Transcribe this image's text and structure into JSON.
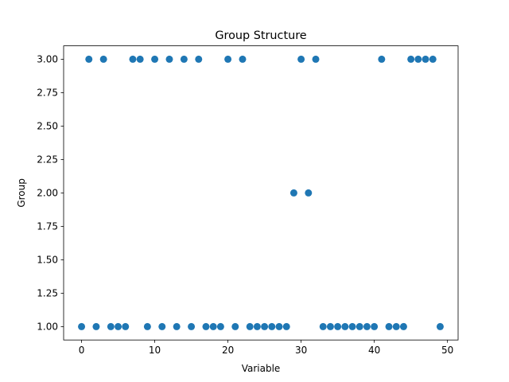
{
  "chart_data": {
    "type": "scatter",
    "title": "Group Structure",
    "xlabel": "Variable",
    "ylabel": "Group",
    "xlim": [
      -2.45,
      51.45
    ],
    "ylim": [
      0.9,
      3.1
    ],
    "xticks": [
      0,
      10,
      20,
      30,
      40,
      50
    ],
    "xtick_labels": [
      "0",
      "10",
      "20",
      "30",
      "40",
      "50"
    ],
    "yticks": [
      1.0,
      1.25,
      1.5,
      1.75,
      2.0,
      2.25,
      2.5,
      2.75,
      3.0
    ],
    "ytick_labels": [
      "1.00",
      "1.25",
      "1.50",
      "1.75",
      "2.00",
      "2.25",
      "2.50",
      "2.75",
      "3.00"
    ],
    "grid": false,
    "marker_color": "#1f77b4",
    "x": [
      0,
      1,
      2,
      3,
      4,
      5,
      6,
      7,
      8,
      9,
      10,
      11,
      12,
      13,
      14,
      15,
      16,
      17,
      18,
      19,
      20,
      21,
      22,
      23,
      24,
      25,
      26,
      27,
      28,
      29,
      30,
      31,
      32,
      33,
      34,
      35,
      36,
      37,
      38,
      39,
      40,
      41,
      42,
      43,
      44,
      45,
      46,
      47,
      48,
      49
    ],
    "y": [
      1,
      3,
      1,
      3,
      1,
      1,
      1,
      3,
      3,
      1,
      3,
      1,
      3,
      1,
      3,
      1,
      3,
      1,
      1,
      1,
      3,
      1,
      3,
      1,
      1,
      1,
      1,
      1,
      1,
      2,
      3,
      2,
      3,
      1,
      1,
      1,
      1,
      1,
      1,
      1,
      1,
      3,
      1,
      1,
      1,
      3,
      3,
      3,
      3,
      1
    ]
  }
}
